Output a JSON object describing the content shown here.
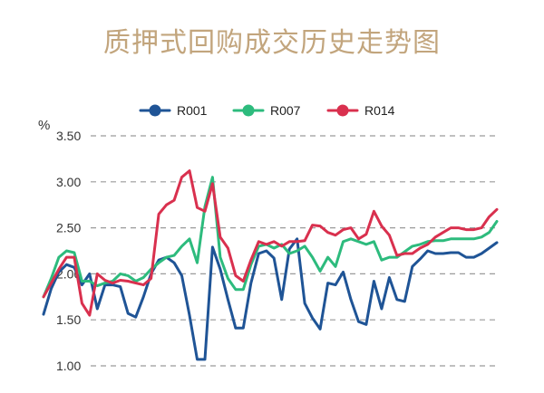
{
  "title": "质押式回购成交历史走势图",
  "chart_data": {
    "type": "line",
    "title": "质押式回购成交历史走势图",
    "y_unit": "%",
    "ylim": [
      1.0,
      3.5
    ],
    "yticks": [
      "1.00",
      "1.50",
      "2.00",
      "2.50",
      "3.00",
      "3.50"
    ],
    "grid": "horizontal dashed",
    "legend": "top-center",
    "x_count": 60,
    "series": [
      {
        "name": "R001",
        "color": "#1f5496",
        "values": [
          1.56,
          1.84,
          2.02,
          2.1,
          2.07,
          1.88,
          2.0,
          1.62,
          1.88,
          1.88,
          1.86,
          1.57,
          1.53,
          1.75,
          2.0,
          2.15,
          2.18,
          2.12,
          1.98,
          1.55,
          1.07,
          1.07,
          2.29,
          2.05,
          1.72,
          1.41,
          1.41,
          1.9,
          2.22,
          2.25,
          2.17,
          1.72,
          2.27,
          2.38,
          1.68,
          1.52,
          1.4,
          1.9,
          1.88,
          2.02,
          1.72,
          1.48,
          1.45,
          1.92,
          1.62,
          1.96,
          1.72,
          1.7,
          2.08,
          2.16,
          2.25,
          2.22,
          2.22,
          2.23,
          2.23,
          2.18,
          2.18,
          2.22,
          2.28,
          2.34
        ]
      },
      {
        "name": "R007",
        "color": "#2dbb7d",
        "values": [
          1.75,
          1.95,
          2.18,
          2.25,
          2.23,
          1.92,
          1.92,
          1.87,
          1.9,
          1.92,
          2.0,
          1.98,
          1.92,
          1.96,
          2.05,
          2.12,
          2.18,
          2.2,
          2.3,
          2.38,
          2.12,
          2.73,
          3.05,
          2.18,
          1.95,
          1.83,
          1.83,
          2.1,
          2.3,
          2.32,
          2.28,
          2.32,
          2.22,
          2.25,
          2.3,
          2.18,
          2.03,
          2.18,
          2.08,
          2.35,
          2.38,
          2.35,
          2.32,
          2.35,
          2.15,
          2.18,
          2.18,
          2.24,
          2.3,
          2.32,
          2.35,
          2.36,
          2.36,
          2.38,
          2.38,
          2.38,
          2.38,
          2.4,
          2.45,
          2.57
        ]
      },
      {
        "name": "R014",
        "color": "#d9304e",
        "values": [
          1.75,
          1.9,
          2.05,
          2.18,
          2.18,
          1.68,
          1.55,
          2.0,
          1.93,
          1.9,
          1.93,
          1.92,
          1.9,
          1.88,
          1.95,
          2.65,
          2.75,
          2.8,
          3.05,
          3.12,
          2.72,
          2.68,
          2.98,
          2.4,
          2.28,
          1.98,
          1.92,
          2.15,
          2.35,
          2.32,
          2.35,
          2.3,
          2.35,
          2.35,
          2.36,
          2.53,
          2.52,
          2.45,
          2.42,
          2.48,
          2.5,
          2.38,
          2.43,
          2.68,
          2.52,
          2.42,
          2.2,
          2.22,
          2.22,
          2.28,
          2.32,
          2.4,
          2.45,
          2.5,
          2.5,
          2.48,
          2.48,
          2.5,
          2.62,
          2.7
        ]
      }
    ]
  }
}
